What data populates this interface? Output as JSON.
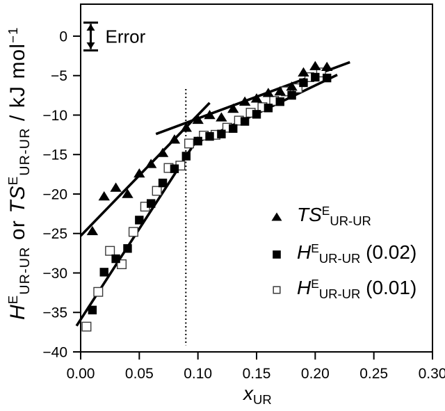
{
  "chart_data": {
    "type": "scatter",
    "xlabel": {
      "main": "x",
      "sub": "UR"
    },
    "ylabel_parts": [
      {
        "t": "H",
        "style": "italic"
      },
      {
        "t": "E",
        "style": "sup"
      },
      {
        "t": "UR-UR",
        "style": "sub"
      },
      {
        "t": " or ",
        "style": "normal"
      },
      {
        "t": "TS",
        "style": "italic"
      },
      {
        "t": "E",
        "style": "sup"
      },
      {
        "t": "UR-UR",
        "style": "sub"
      },
      {
        "t": "  /  kJ mol",
        "style": "normal"
      },
      {
        "t": "−1",
        "style": "sup"
      }
    ],
    "xlim": [
      0.0,
      0.3
    ],
    "ylim": [
      -40,
      4.05
    ],
    "x_ticks": [
      0.0,
      0.05,
      0.1,
      0.15,
      0.2,
      0.25,
      0.3
    ],
    "x_tick_labels": [
      "0.00",
      "0.05",
      "0.10",
      "0.15",
      "0.20",
      "0.25",
      "0.30"
    ],
    "y_ticks": [
      0,
      -5,
      -10,
      -15,
      -20,
      -25,
      -30,
      -35,
      -40
    ],
    "y_tick_labels": [
      "0",
      "−5",
      "−10",
      "−15",
      "−20",
      "−25",
      "−30",
      "−35",
      "−40"
    ],
    "grid": false,
    "series": [
      {
        "name": "TS_E_UR-UR",
        "marker": "filled-triangle",
        "points": [
          [
            0.01,
            -24.7
          ],
          [
            0.02,
            -20.3
          ],
          [
            0.03,
            -19.2
          ],
          [
            0.04,
            -20.0
          ],
          [
            0.05,
            -17.4
          ],
          [
            0.06,
            -16.2
          ],
          [
            0.07,
            -14.8
          ],
          [
            0.08,
            -13.1
          ],
          [
            0.09,
            -11.6
          ],
          [
            0.1,
            -10.6
          ],
          [
            0.11,
            -10.0
          ],
          [
            0.12,
            -10.3
          ],
          [
            0.13,
            -9.2
          ],
          [
            0.14,
            -8.3
          ],
          [
            0.15,
            -7.9
          ],
          [
            0.16,
            -7.2
          ],
          [
            0.17,
            -7.0
          ],
          [
            0.18,
            -6.4
          ],
          [
            0.19,
            -4.6
          ],
          [
            0.2,
            -3.8
          ],
          [
            0.21,
            -3.9
          ]
        ]
      },
      {
        "name": "H_E_UR-UR (0.02)",
        "marker": "filled-square",
        "points": [
          [
            0.01,
            -34.7
          ],
          [
            0.02,
            -29.9
          ],
          [
            0.03,
            -28.2
          ],
          [
            0.04,
            -26.9
          ],
          [
            0.05,
            -23.3
          ],
          [
            0.06,
            -21.2
          ],
          [
            0.07,
            -18.6
          ],
          [
            0.08,
            -16.8
          ],
          [
            0.09,
            -15.2
          ],
          [
            0.1,
            -13.3
          ],
          [
            0.11,
            -12.7
          ],
          [
            0.12,
            -12.4
          ],
          [
            0.13,
            -11.7
          ],
          [
            0.14,
            -10.8
          ],
          [
            0.15,
            -9.9
          ],
          [
            0.16,
            -9.1
          ],
          [
            0.17,
            -8.3
          ],
          [
            0.18,
            -7.5
          ],
          [
            0.19,
            -5.9
          ],
          [
            0.2,
            -5.2
          ],
          [
            0.21,
            -5.3
          ]
        ]
      },
      {
        "name": "H_E_UR-UR (0.01)",
        "marker": "open-square",
        "points": [
          [
            0.005,
            -36.8
          ],
          [
            0.015,
            -32.4
          ],
          [
            0.025,
            -27.2
          ],
          [
            0.035,
            -28.9
          ],
          [
            0.045,
            -24.8
          ],
          [
            0.055,
            -21.6
          ],
          [
            0.065,
            -19.6
          ],
          [
            0.075,
            -16.7
          ],
          [
            0.085,
            -16.4
          ],
          [
            0.0925,
            -13.6
          ],
          [
            0.105,
            -12.6
          ],
          [
            0.115,
            -12.5
          ],
          [
            0.125,
            -11.6
          ],
          [
            0.135,
            -10.7
          ],
          [
            0.145,
            -9.7
          ],
          [
            0.155,
            -9.0
          ],
          [
            0.165,
            -8.2
          ],
          [
            0.175,
            -7.0
          ],
          [
            0.185,
            -6.6
          ],
          [
            0.195,
            -5.2
          ],
          [
            0.205,
            -4.6
          ]
        ]
      }
    ],
    "fit_lines": [
      {
        "name": "ts-steep-fit",
        "x1": 0.0,
        "y1": -25.3,
        "x2": 0.11,
        "y2": -8.45
      },
      {
        "name": "ts-shallow-fit",
        "x1": 0.0642,
        "y1": -12.4,
        "x2": 0.2296,
        "y2": -3.3
      },
      {
        "name": "h-steep-fit",
        "x1": -0.0035,
        "y1": -36.7,
        "x2": 0.1005,
        "y2": -12.8
      },
      {
        "name": "h-shallow-fit",
        "x1": 0.093,
        "y1": -13.9,
        "x2": 0.2188,
        "y2": -4.9
      }
    ],
    "vline": {
      "x": 0.0897,
      "from": -6.7,
      "to": -39.2,
      "style": "dotted"
    },
    "error_bar": {
      "label": "Error",
      "x": 0.0086,
      "top": 1.72,
      "bottom": -1.81
    }
  },
  "legend": {
    "items": [
      {
        "marker": "filled-triangle",
        "pre": "TS",
        "sup": "E",
        "sub": "UR-UR",
        "suffix": ""
      },
      {
        "marker": "filled-square",
        "pre": "H",
        "sup": "E",
        "sub": "UR-UR",
        "suffix": " (0.02)"
      },
      {
        "marker": "open-square",
        "pre": "H",
        "sup": "E",
        "sub": "UR-UR",
        "suffix": " (0.01)"
      }
    ]
  }
}
